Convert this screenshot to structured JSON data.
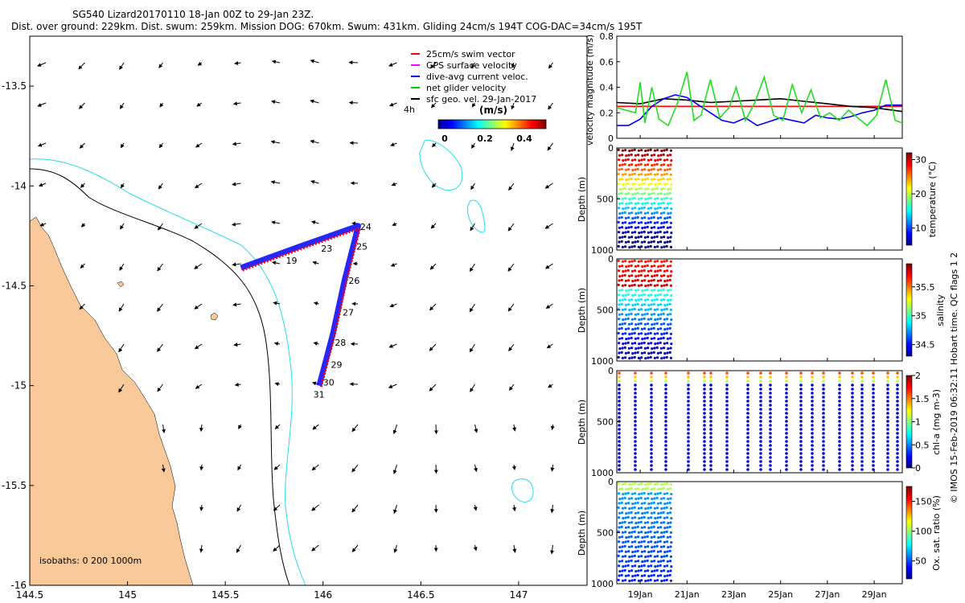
{
  "title": {
    "line1": "SG540 Lizard20170110 18-Jan 00Z to 29-Jan 23Z.",
    "line2": "Dist. over ground: 229km. Dist. swum: 259km. Mission DOG: 670km. Swum: 431km. Gliding 24cm/s 194T COG-DAC=34cm/s 195T"
  },
  "map": {
    "xlim": [
      144.5,
      147.35
    ],
    "ylim": [
      -16.0,
      -13.25
    ],
    "xticks": [
      144.5,
      145,
      145.5,
      146,
      146.5,
      147
    ],
    "yticks": [
      -16,
      -15.5,
      -15,
      -14.5,
      -14,
      -13.5
    ],
    "legend": {
      "items": [
        {
          "label": "25cm/s swim vector",
          "color": "#ff0000"
        },
        {
          "label": "GPS surface velocity",
          "color": "#ff00ff"
        },
        {
          "label": "dive-avg current veloc.",
          "color": "#0000ff"
        },
        {
          "label": "net glider velocity",
          "color": "#00cc00"
        },
        {
          "label": "sfc geo. vel. 29-Jan-2017",
          "color": "#000000"
        }
      ],
      "colorbar_title": "(m/s)",
      "colorbar_ticks": [
        "0",
        "0.2",
        "0.4"
      ]
    },
    "isobaths_label": "isobaths: 0   200  1000m",
    "time_marker": "4h",
    "day_labels": [
      {
        "day": "24",
        "lon": 146.19,
        "lat": -14.22
      },
      {
        "day": "25",
        "lon": 146.17,
        "lat": -14.32
      },
      {
        "day": "26",
        "lon": 146.13,
        "lat": -14.49
      },
      {
        "day": "27",
        "lon": 146.1,
        "lat": -14.65
      },
      {
        "day": "28",
        "lon": 146.06,
        "lat": -14.8
      },
      {
        "day": "29",
        "lon": 146.04,
        "lat": -14.91
      },
      {
        "day": "30",
        "lon": 146.0,
        "lat": -15.0
      },
      {
        "day": "31",
        "lon": 145.95,
        "lat": -15.06
      },
      {
        "day": "23",
        "lon": 145.99,
        "lat": -14.33
      },
      {
        "day": "19",
        "lon": 145.81,
        "lat": -14.39
      }
    ],
    "track": [
      {
        "lon": 145.58,
        "lat": -14.41
      },
      {
        "lon": 145.86,
        "lat": -14.31
      },
      {
        "lon": 146.18,
        "lat": -14.2
      },
      {
        "lon": 146.11,
        "lat": -14.47
      },
      {
        "lon": 146.05,
        "lat": -14.74
      },
      {
        "lon": 145.98,
        "lat": -15.0
      }
    ]
  },
  "velocity_panel": {
    "ylabel": "velocity magnitude (m/s)",
    "ylim": [
      0,
      0.8
    ],
    "yticks": [
      "0",
      "0.2",
      "0.4",
      "0.6",
      "0.8"
    ],
    "xlim": [
      18,
      30.2
    ],
    "series": [
      {
        "name": "swim",
        "color": "#ff0000",
        "x": [
          18,
          30.2
        ],
        "y": [
          0.25,
          0.25
        ]
      },
      {
        "name": "sfc geo",
        "color": "#000000",
        "x": [
          18,
          19,
          20,
          21,
          22,
          23,
          24,
          25,
          26,
          27,
          28,
          29,
          30.2
        ],
        "y": [
          0.28,
          0.27,
          0.31,
          0.3,
          0.28,
          0.29,
          0.3,
          0.31,
          0.29,
          0.27,
          0.25,
          0.24,
          0.21
        ]
      },
      {
        "name": "dive-avg current",
        "color": "#0000ff",
        "x": [
          18,
          18.5,
          19,
          19.5,
          20,
          20.5,
          21,
          21.5,
          22,
          22.5,
          23,
          23.5,
          24,
          24.5,
          25,
          25.5,
          26,
          26.5,
          27,
          27.5,
          28,
          28.5,
          29,
          29.5,
          30.2
        ],
        "y": [
          0.1,
          0.1,
          0.15,
          0.25,
          0.31,
          0.34,
          0.32,
          0.26,
          0.2,
          0.14,
          0.12,
          0.16,
          0.1,
          0.13,
          0.16,
          0.14,
          0.12,
          0.18,
          0.16,
          0.15,
          0.17,
          0.2,
          0.22,
          0.26,
          0.26
        ]
      },
      {
        "name": "net glider",
        "color": "#22dd22",
        "x": [
          18,
          18.4,
          18.8,
          19.0,
          19.2,
          19.5,
          19.8,
          20.2,
          20.6,
          21.0,
          21.3,
          21.6,
          22.0,
          22.4,
          22.8,
          23.1,
          23.5,
          23.9,
          24.3,
          24.7,
          25.1,
          25.5,
          25.9,
          26.3,
          26.7,
          27.1,
          27.5,
          27.9,
          28.3,
          28.7,
          29.1,
          29.5,
          29.9,
          30.2
        ],
        "y": [
          0.24,
          0.22,
          0.2,
          0.44,
          0.12,
          0.4,
          0.15,
          0.1,
          0.28,
          0.52,
          0.14,
          0.18,
          0.46,
          0.16,
          0.24,
          0.4,
          0.14,
          0.28,
          0.48,
          0.18,
          0.14,
          0.42,
          0.2,
          0.38,
          0.16,
          0.2,
          0.14,
          0.22,
          0.16,
          0.1,
          0.18,
          0.46,
          0.14,
          0.12
        ]
      }
    ]
  },
  "depth_panels": [
    {
      "name": "temperature",
      "label": "temperature (°C)",
      "ylabel": "Depth (m)",
      "yticks": [
        "0",
        "500",
        "1000"
      ],
      "cbar_ticks": [
        "10",
        "20",
        "30"
      ],
      "cbar_range": [
        5,
        32
      ]
    },
    {
      "name": "salinity",
      "label": "salinity",
      "ylabel": "Depth (m)",
      "yticks": [
        "0",
        "500",
        "1000"
      ],
      "cbar_ticks": [
        "34.5",
        "35",
        "35.5"
      ],
      "cbar_range": [
        34.3,
        35.9
      ]
    },
    {
      "name": "chl-a",
      "label": "chl-a (mg m-3)",
      "ylabel": "Depth (m)",
      "yticks": [
        "0",
        "500",
        "1000"
      ],
      "cbar_ticks": [
        "0",
        "0.5",
        "1",
        "1.5",
        "2"
      ],
      "cbar_range": [
        0,
        2
      ]
    },
    {
      "name": "oxygen",
      "label": "Ox. sat. ratio (%)",
      "ylabel": "Depth (m)",
      "yticks": [
        "0",
        "500",
        "1000"
      ],
      "cbar_ticks": [
        "50",
        "100",
        "150"
      ],
      "cbar_range": [
        20,
        175
      ]
    }
  ],
  "time_axis": {
    "ticks": [
      {
        "day": 19,
        "label": "19Jan"
      },
      {
        "day": 21,
        "label": "21Jan"
      },
      {
        "day": 23,
        "label": "23Jan"
      },
      {
        "day": 25,
        "label": "25Jan"
      },
      {
        "day": 27,
        "label": "27Jan"
      },
      {
        "day": 29,
        "label": "29Jan"
      }
    ]
  },
  "credit": "© IMOS 15-Feb-2019 06:32:11 Hobart time. QC flags 1  2"
}
